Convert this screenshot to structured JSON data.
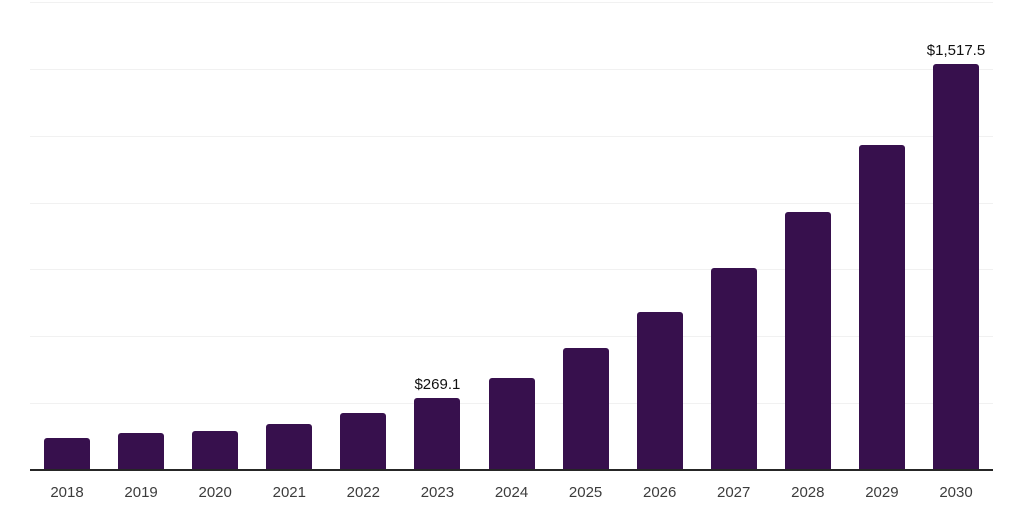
{
  "chart_data": {
    "type": "bar",
    "title": "",
    "xlabel": "",
    "ylabel": "",
    "categories": [
      "2018",
      "2019",
      "2020",
      "2021",
      "2022",
      "2023",
      "2024",
      "2025",
      "2026",
      "2027",
      "2028",
      "2029",
      "2030"
    ],
    "values": [
      119,
      137,
      145,
      171,
      215,
      269.1,
      345,
      455,
      592,
      757,
      965,
      1215,
      1517.5
    ],
    "data_labels": [
      {
        "category": "2023",
        "text": "$269.1"
      },
      {
        "category": "2030",
        "text": "$1,517.5"
      }
    ],
    "ylim": [
      0,
      1750
    ],
    "gridline_step": 250,
    "grid": true,
    "legend_position": "none",
    "colors": {
      "bar": "#37104D",
      "axis_line": "#262626",
      "gridline": "#F1F1F1",
      "tick_label": "#3C3C3C",
      "data_label": "#111111",
      "background": "#FFFFFF"
    }
  }
}
